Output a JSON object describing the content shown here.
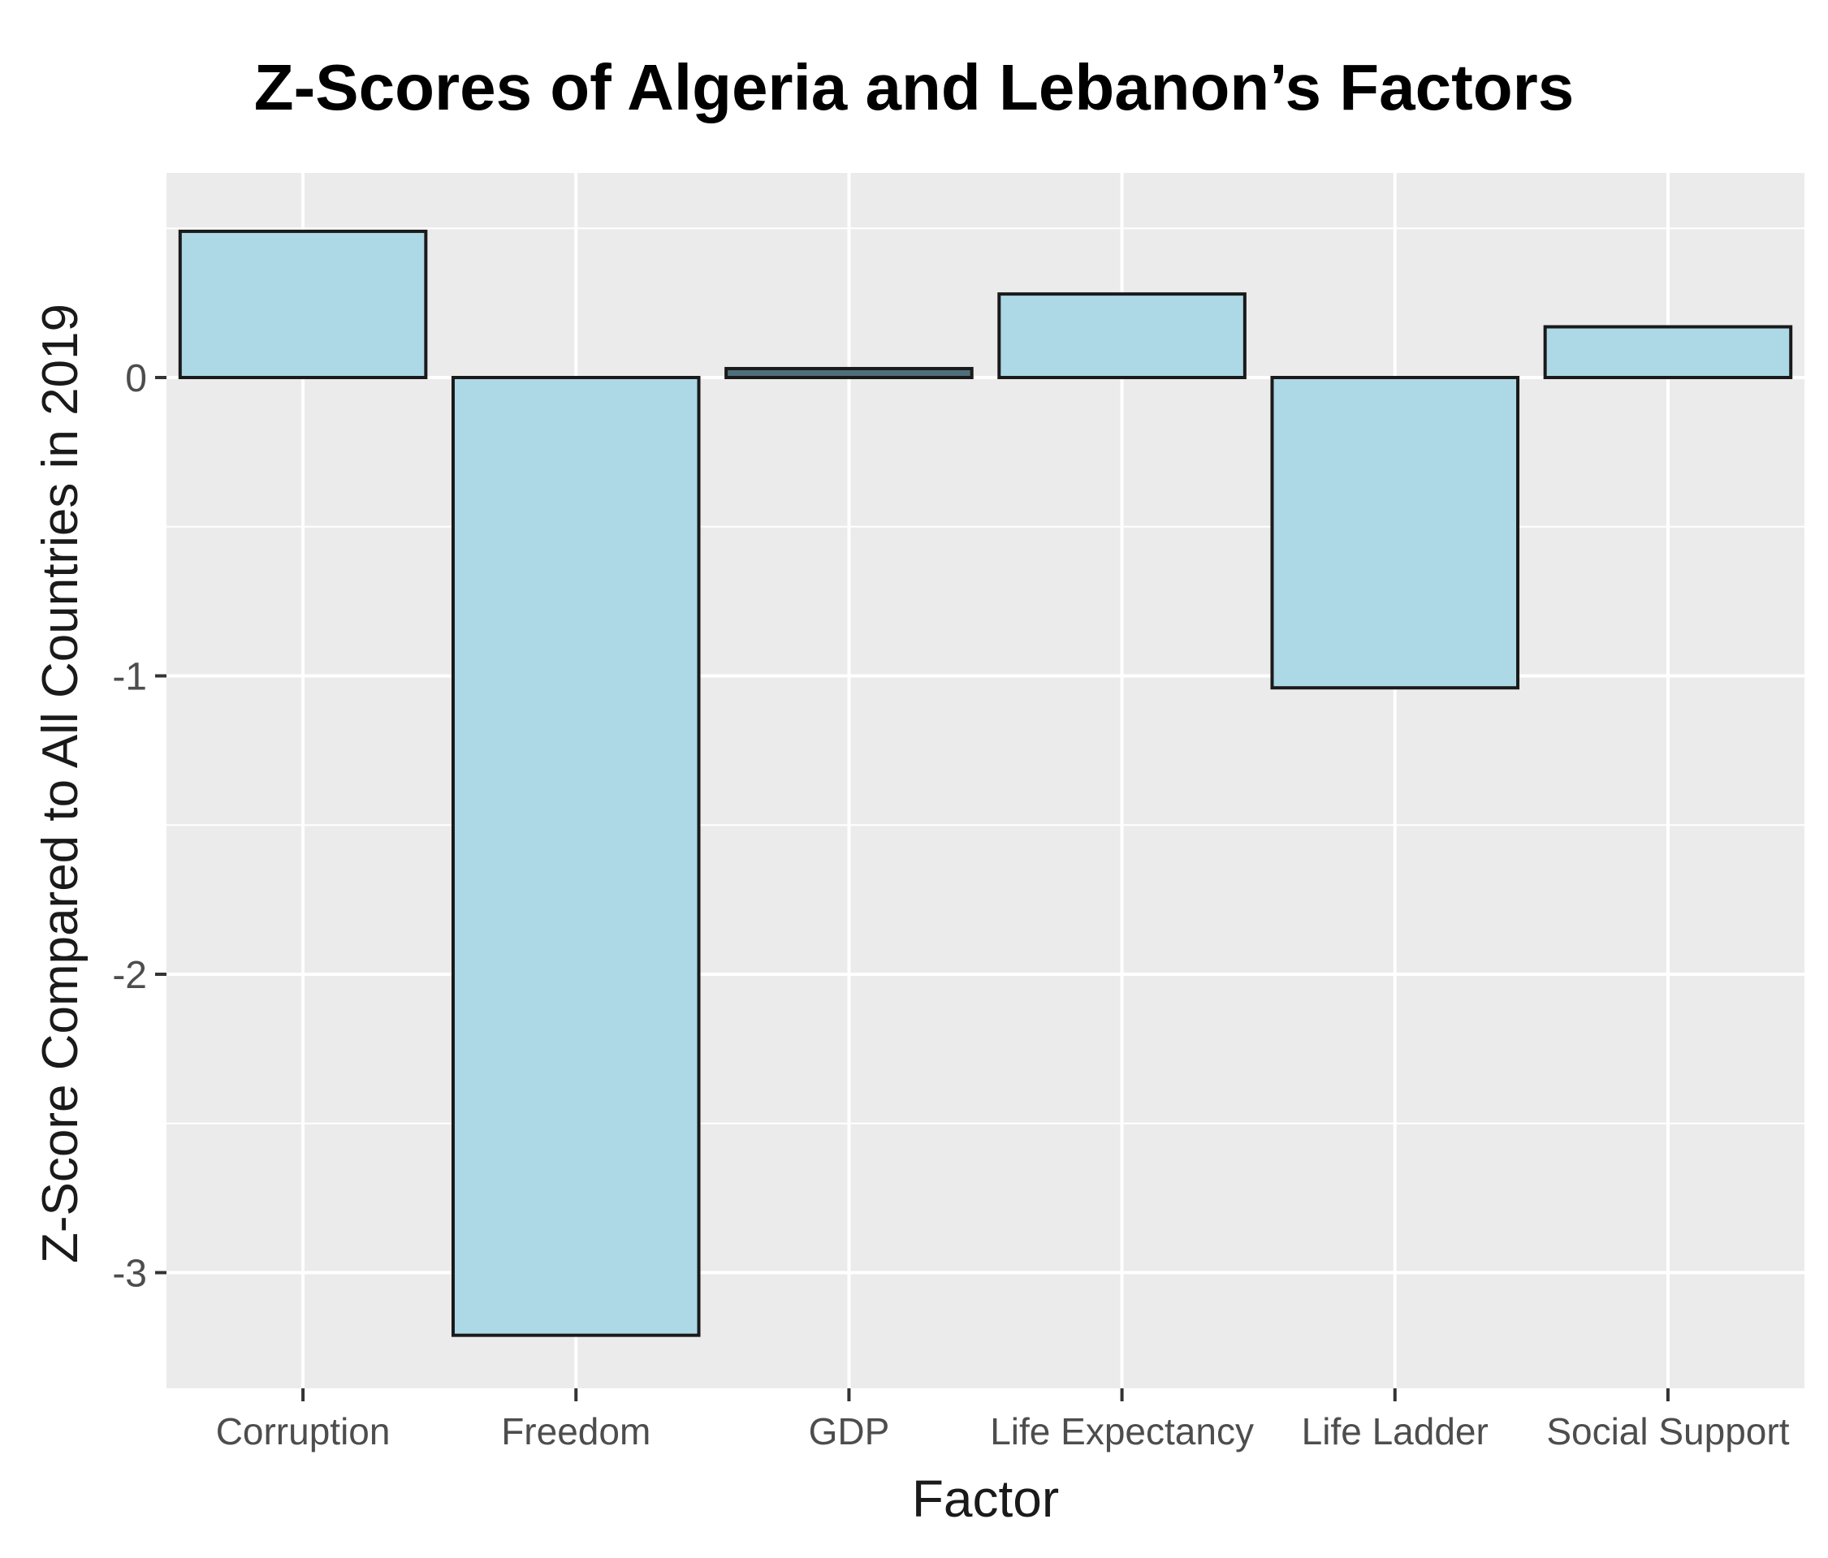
{
  "chart_data": {
    "type": "bar",
    "title": "Z-Scores of Algeria and Lebanon’s Factors",
    "xlabel": "Factor",
    "ylabel": "Z-Score Compared to All Countries in 2019",
    "categories": [
      "Corruption",
      "Freedom",
      "GDP",
      "Life Expectancy",
      "Life Ladder",
      "Social Support"
    ],
    "values": [
      0.49,
      -3.21,
      0.03,
      0.28,
      -1.04,
      0.17
    ],
    "ylim": [
      -3.4,
      0.68
    ],
    "yticks": [
      0,
      -1,
      -2,
      -3
    ],
    "yticks_minor": [
      0.5,
      -0.5,
      -1.5,
      -2.5
    ],
    "grid": true,
    "colors": {
      "panel": "#ebebeb",
      "grid": "#ffffff",
      "bar_fill": "#add8e6",
      "bar_stroke": "#1a1a1a",
      "gdp_fill": "#4f6f7a"
    }
  }
}
